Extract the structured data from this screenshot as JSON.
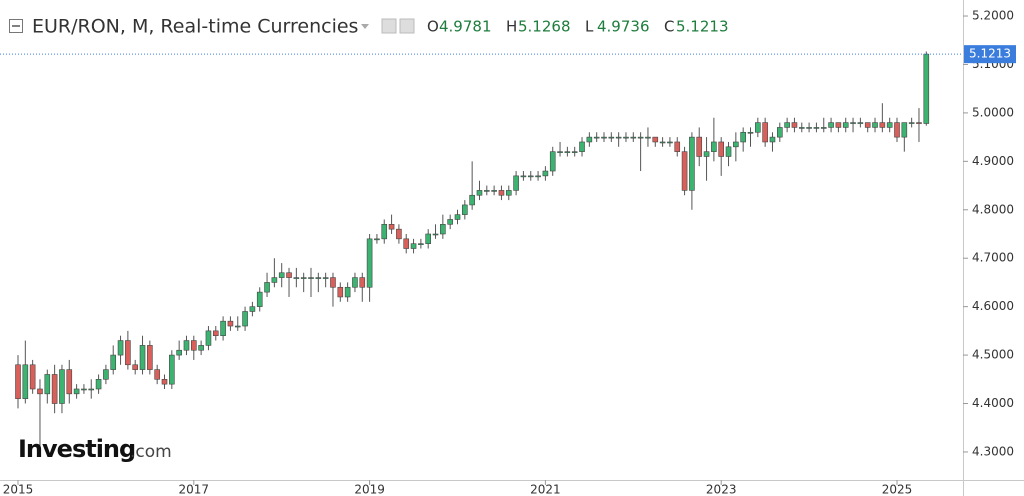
{
  "chart_data": {
    "type": "candlestick",
    "title": "EUR/RON, M, Real-time Currencies",
    "ohlc_labels": [
      "O",
      "H",
      "L",
      "C"
    ],
    "watermark": [
      "Investing",
      ".com"
    ],
    "up_color": "#3cb371",
    "down_color": "#d9605a",
    "price_line_color": "#3b7ddd",
    "categories": [
      "2015",
      null,
      null,
      null,
      null,
      null,
      null,
      null,
      null,
      null,
      null,
      null,
      null,
      null,
      null,
      null,
      null,
      null,
      null,
      null,
      null,
      null,
      null,
      null,
      "2017",
      null,
      null,
      null,
      null,
      null,
      null,
      null,
      null,
      null,
      null,
      null,
      null,
      null,
      null,
      null,
      null,
      null,
      null,
      null,
      null,
      null,
      null,
      null,
      "2019",
      null,
      null,
      null,
      null,
      null,
      null,
      null,
      null,
      null,
      null,
      null,
      null,
      null,
      null,
      null,
      null,
      null,
      null,
      null,
      null,
      null,
      null,
      null,
      "2021",
      null,
      null,
      null,
      null,
      null,
      null,
      null,
      null,
      null,
      null,
      null,
      null,
      null,
      null,
      null,
      null,
      null,
      null,
      null,
      null,
      null,
      null,
      null,
      "2023",
      null,
      null,
      null,
      null,
      null,
      null,
      null,
      null,
      null,
      null,
      null,
      null,
      null,
      null,
      null,
      null,
      null,
      null,
      null,
      null,
      null,
      null,
      null,
      "2025",
      null,
      null,
      null,
      null
    ],
    "series": {
      "open": [
        4.48,
        4.41,
        4.48,
        4.43,
        4.42,
        4.46,
        4.4,
        4.47,
        4.42,
        4.43,
        4.43,
        4.43,
        4.45,
        4.47,
        4.5,
        4.53,
        4.48,
        4.47,
        4.52,
        4.47,
        4.45,
        4.44,
        4.5,
        4.51,
        4.53,
        4.51,
        4.52,
        4.55,
        4.54,
        4.57,
        4.56,
        4.56,
        4.59,
        4.6,
        4.63,
        4.65,
        4.66,
        4.67,
        4.66,
        4.66,
        4.66,
        4.66,
        4.66,
        4.66,
        4.64,
        4.62,
        4.64,
        4.66,
        4.64,
        4.74,
        4.74,
        4.77,
        4.76,
        4.74,
        4.72,
        4.73,
        4.73,
        4.75,
        4.75,
        4.77,
        4.78,
        4.79,
        4.81,
        4.83,
        4.84,
        4.84,
        4.84,
        4.83,
        4.84,
        4.87,
        4.87,
        4.87,
        4.87,
        4.88,
        4.92,
        4.92,
        4.92,
        4.92,
        4.94,
        4.95,
        4.95,
        4.95,
        4.95,
        4.95,
        4.95,
        4.95,
        4.95,
        4.95,
        4.94,
        4.94,
        4.94,
        4.92,
        4.84,
        4.95,
        4.91,
        4.92,
        4.94,
        4.91,
        4.93,
        4.94,
        4.96,
        4.96,
        4.98,
        4.94,
        4.95,
        4.97,
        4.98,
        4.97,
        4.97,
        4.97,
        4.97,
        4.97,
        4.98,
        4.97,
        4.98,
        4.98,
        4.98,
        4.97,
        4.98,
        4.97,
        4.98,
        4.95,
        4.98,
        4.98,
        4.9781
      ],
      "high": [
        4.5,
        4.53,
        4.49,
        4.45,
        4.47,
        4.48,
        4.48,
        4.49,
        4.44,
        4.44,
        4.45,
        4.46,
        4.48,
        4.52,
        4.54,
        4.55,
        4.49,
        4.54,
        4.53,
        4.48,
        4.46,
        4.51,
        4.53,
        4.54,
        4.54,
        4.53,
        4.56,
        4.56,
        4.58,
        4.58,
        4.58,
        4.6,
        4.61,
        4.64,
        4.67,
        4.7,
        4.69,
        4.68,
        4.68,
        4.67,
        4.68,
        4.67,
        4.67,
        4.67,
        4.65,
        4.65,
        4.67,
        4.67,
        4.75,
        4.75,
        4.78,
        4.79,
        4.77,
        4.75,
        4.74,
        4.74,
        4.76,
        4.77,
        4.79,
        4.79,
        4.8,
        4.82,
        4.9,
        4.86,
        4.85,
        4.85,
        4.85,
        4.85,
        4.88,
        4.88,
        4.88,
        4.88,
        4.89,
        4.93,
        4.94,
        4.93,
        4.93,
        4.95,
        4.96,
        4.96,
        4.96,
        4.96,
        4.96,
        4.96,
        4.96,
        4.96,
        4.97,
        4.95,
        4.95,
        4.95,
        4.95,
        4.93,
        4.96,
        4.97,
        4.95,
        4.99,
        4.95,
        4.94,
        4.96,
        4.97,
        4.97,
        4.99,
        4.99,
        4.96,
        4.98,
        4.99,
        4.99,
        4.98,
        4.98,
        4.98,
        4.99,
        4.99,
        4.98,
        4.99,
        4.99,
        4.99,
        4.98,
        4.99,
        5.02,
        4.99,
        4.99,
        4.98,
        4.99,
        5.01,
        5.1268
      ],
      "low": [
        4.39,
        4.4,
        4.42,
        4.31,
        4.4,
        4.38,
        4.38,
        4.4,
        4.41,
        4.42,
        4.41,
        4.42,
        4.44,
        4.46,
        4.48,
        4.47,
        4.46,
        4.46,
        4.46,
        4.44,
        4.43,
        4.43,
        4.49,
        4.5,
        4.49,
        4.5,
        4.51,
        4.53,
        4.53,
        4.55,
        4.55,
        4.55,
        4.58,
        4.59,
        4.62,
        4.64,
        4.64,
        4.62,
        4.64,
        4.63,
        4.62,
        4.63,
        4.64,
        4.6,
        4.61,
        4.61,
        4.63,
        4.61,
        4.61,
        4.73,
        4.73,
        4.75,
        4.73,
        4.71,
        4.71,
        4.72,
        4.72,
        4.74,
        4.74,
        4.76,
        4.77,
        4.78,
        4.8,
        4.82,
        4.83,
        4.83,
        4.82,
        4.82,
        4.83,
        4.86,
        4.86,
        4.86,
        4.86,
        4.87,
        4.91,
        4.91,
        4.91,
        4.91,
        4.93,
        4.94,
        4.94,
        4.94,
        4.93,
        4.94,
        4.94,
        4.88,
        4.93,
        4.93,
        4.93,
        4.93,
        4.91,
        4.83,
        4.8,
        4.89,
        4.86,
        4.9,
        4.87,
        4.89,
        4.9,
        4.92,
        4.93,
        4.95,
        4.93,
        4.92,
        4.94,
        4.96,
        4.96,
        4.96,
        4.96,
        4.96,
        4.96,
        4.96,
        4.96,
        4.96,
        4.96,
        4.97,
        4.96,
        4.96,
        4.96,
        4.96,
        4.94,
        4.92,
        4.97,
        4.94,
        4.9736
      ],
      "close": [
        4.41,
        4.48,
        4.43,
        4.42,
        4.46,
        4.4,
        4.47,
        4.42,
        4.43,
        4.43,
        4.43,
        4.45,
        4.47,
        4.5,
        4.53,
        4.48,
        4.47,
        4.52,
        4.47,
        4.45,
        4.44,
        4.5,
        4.51,
        4.53,
        4.51,
        4.52,
        4.55,
        4.54,
        4.57,
        4.56,
        4.56,
        4.59,
        4.6,
        4.63,
        4.65,
        4.66,
        4.67,
        4.66,
        4.66,
        4.66,
        4.66,
        4.66,
        4.66,
        4.64,
        4.62,
        4.64,
        4.66,
        4.64,
        4.74,
        4.74,
        4.77,
        4.76,
        4.74,
        4.72,
        4.73,
        4.73,
        4.75,
        4.75,
        4.77,
        4.78,
        4.79,
        4.81,
        4.83,
        4.84,
        4.84,
        4.84,
        4.83,
        4.84,
        4.87,
        4.87,
        4.87,
        4.87,
        4.88,
        4.92,
        4.92,
        4.92,
        4.92,
        4.94,
        4.95,
        4.95,
        4.95,
        4.95,
        4.95,
        4.95,
        4.95,
        4.95,
        4.95,
        4.94,
        4.94,
        4.94,
        4.92,
        4.84,
        4.95,
        4.91,
        4.92,
        4.94,
        4.91,
        4.93,
        4.94,
        4.96,
        4.96,
        4.98,
        4.94,
        4.95,
        4.97,
        4.98,
        4.97,
        4.97,
        4.97,
        4.97,
        4.97,
        4.98,
        4.97,
        4.98,
        4.98,
        4.98,
        4.97,
        4.98,
        4.97,
        4.98,
        4.95,
        4.98,
        4.98,
        4.9781,
        5.1213
      ]
    },
    "ylim": [
      4.2421,
      5.2331
    ],
    "yticks": [
      {
        "value": 4.3,
        "label": "4.3000"
      },
      {
        "value": 4.4,
        "label": "4.4000"
      },
      {
        "value": 4.5,
        "label": "4.5000"
      },
      {
        "value": 4.6,
        "label": "4.6000"
      },
      {
        "value": 4.7,
        "label": "4.7000"
      },
      {
        "value": 4.8,
        "label": "4.8000"
      },
      {
        "value": 4.9,
        "label": "4.9000"
      },
      {
        "value": 5.0,
        "label": "5.0000"
      },
      {
        "value": 5.1,
        "label": "5.1000"
      },
      {
        "value": 5.2,
        "label": "5.2000"
      }
    ]
  }
}
